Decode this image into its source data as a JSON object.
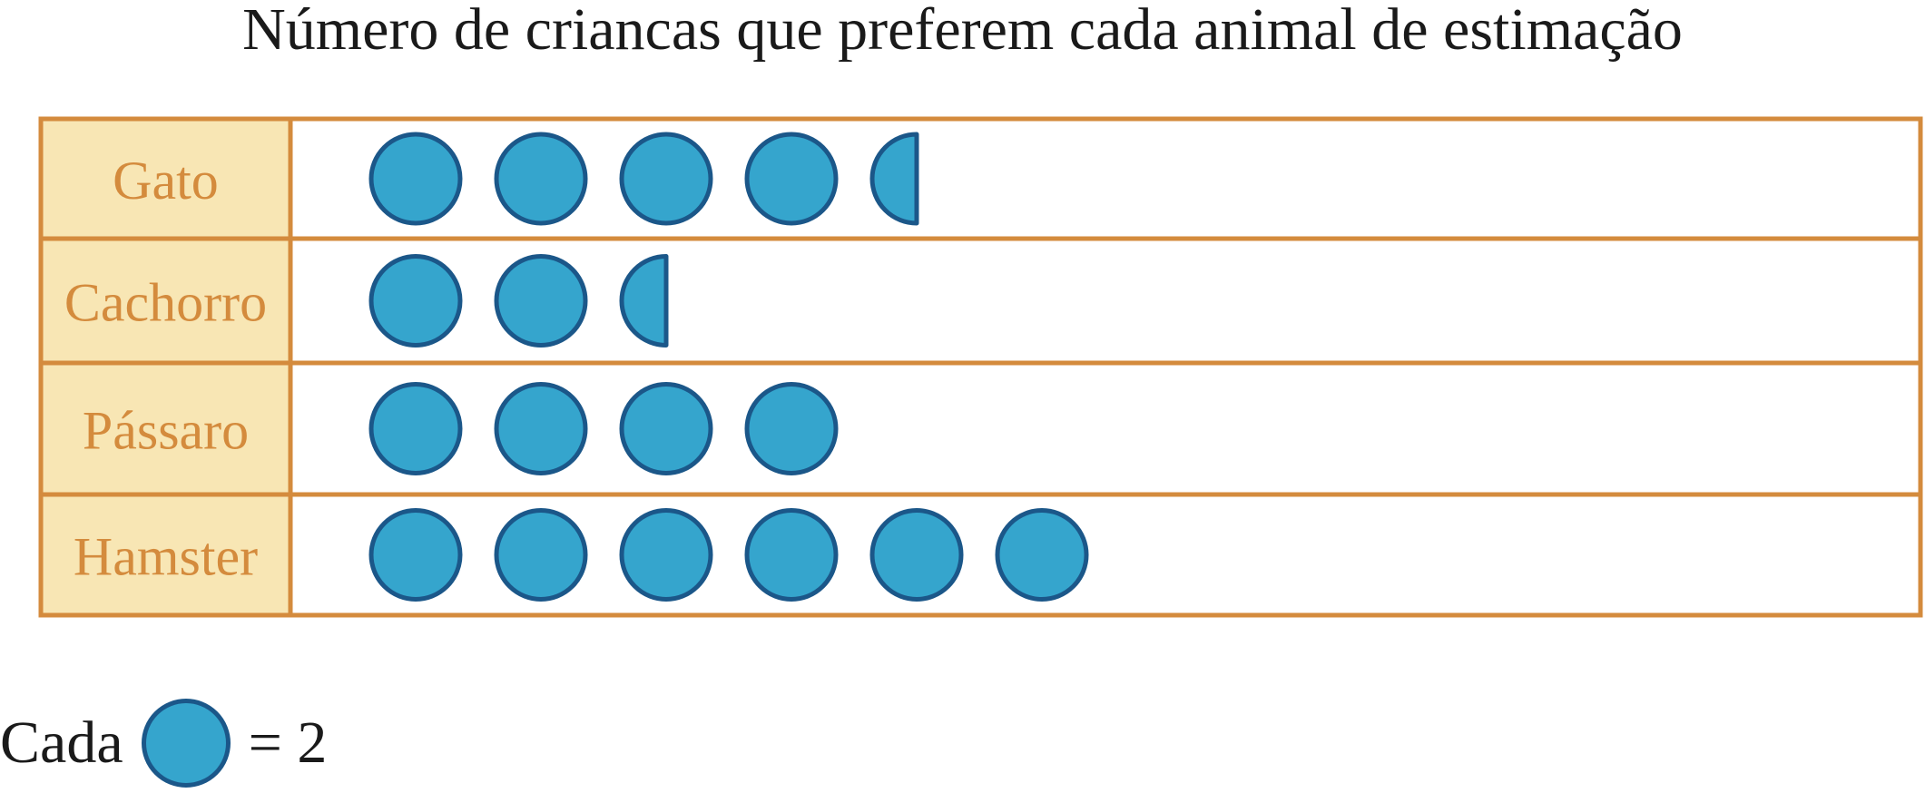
{
  "chart_data": {
    "type": "pictograph",
    "title": "Número de criancas que preferem cada animal de estimação",
    "categories": [
      "Gato",
      "Cachorro",
      "Pássaro",
      "Hamster"
    ],
    "icon_counts": [
      4.5,
      2.5,
      4,
      6
    ],
    "values": [
      9,
      5,
      8,
      12
    ],
    "key": {
      "prefix": "Cada",
      "suffix": "= 2",
      "value_per_icon": 2
    }
  },
  "colors": {
    "border": "#d48b3d",
    "label_bg": "#f8e6b4",
    "label_text": "#d48b3d",
    "icon_fill": "#35a5cd",
    "icon_stroke": "#1b5789"
  },
  "icon_name": "circle-icon"
}
